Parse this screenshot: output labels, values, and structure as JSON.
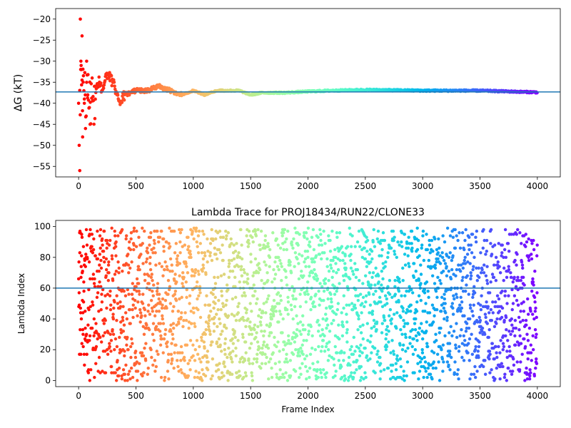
{
  "chart_data": [
    {
      "type": "scatter",
      "title": "",
      "xlabel": "",
      "ylabel": "ΔG (kT)",
      "xlim": [
        -200,
        4200
      ],
      "ylim": [
        -57.5,
        -17.5
      ],
      "xticks": [
        0,
        500,
        1000,
        1500,
        2000,
        2500,
        3000,
        3500,
        4000
      ],
      "yticks": [
        -55,
        -50,
        -45,
        -40,
        -35,
        -30,
        -25,
        -20
      ],
      "hline": -37.3,
      "hline_color": "#1f77b4",
      "colormap": "rainbow (reversed: red at frame 0, violet at frame 4000)",
      "grid": false,
      "series": [
        {
          "x": [
            0,
            5,
            10,
            15,
            20,
            25,
            30,
            35,
            40,
            50,
            60,
            70,
            80,
            100,
            120,
            150,
            180,
            200,
            250,
            300,
            350,
            400,
            500,
            600,
            700,
            800,
            900,
            1000,
            1100,
            1200,
            1300,
            1400,
            1500,
            1600,
            1800,
            2000,
            2200,
            2500,
            3000,
            3500,
            4000
          ],
          "y": [
            -40,
            -50,
            -56,
            -20,
            -30,
            -32,
            -24,
            -48,
            -35,
            -40,
            -46,
            -30,
            -38,
            -45,
            -36,
            -37,
            -34,
            -37,
            -33,
            -35,
            -40,
            -38,
            -37,
            -37,
            -36,
            -37,
            -38,
            -37,
            -38,
            -37,
            -37,
            -37,
            -38,
            -37.5,
            -37.5,
            -37.2,
            -37,
            -36.8,
            -37,
            -37,
            -37.4
          ]
        }
      ]
    },
    {
      "type": "scatter",
      "title": "Lambda Trace for PROJ18434/RUN22/CLONE33",
      "xlabel": "Frame Index",
      "ylabel": "Lambda Index",
      "xlim": [
        -200,
        4200
      ],
      "ylim": [
        -4,
        104
      ],
      "xticks": [
        0,
        500,
        1000,
        1500,
        2000,
        2500,
        3000,
        3500,
        4000
      ],
      "yticks": [
        0,
        20,
        40,
        60,
        80,
        100
      ],
      "hline": 60,
      "hline_color": "#1f77b4",
      "colormap": "rainbow (reversed: red at frame 0, violet at frame 4000)",
      "grid": false,
      "series": [
        {
          "description_of_distribution": "4000 frames, lambda index values spread roughly uniformly between 0 and 99",
          "x_range": [
            0,
            4000
          ],
          "y_range": [
            0,
            99
          ]
        }
      ]
    }
  ]
}
